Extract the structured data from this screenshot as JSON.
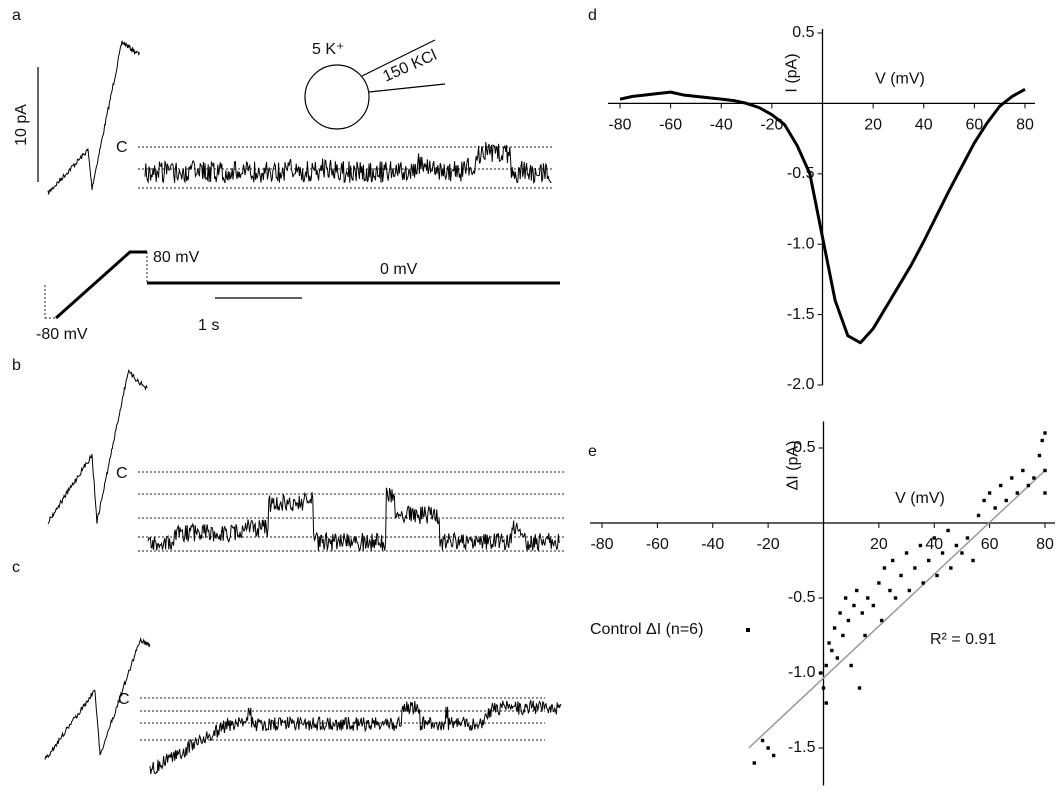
{
  "panel_labels": [
    "a",
    "b",
    "c",
    "d",
    "e"
  ],
  "panel_a": {
    "scale_current": "10 pA",
    "closed_label": "C",
    "bath": "5 K⁺",
    "pipette": "150 KCl",
    "step_high": "80 mV",
    "hold": "0 mV",
    "step_low": "-80 mV",
    "scale_time": "1 s"
  },
  "panel_b": {
    "closed_label": "C"
  },
  "panel_c": {
    "closed_label": "C"
  },
  "chart_data": [
    {
      "type": "line",
      "x_label": "V (mV)",
      "y_label": "I (pA)",
      "series": [
        {
          "color": "#000000",
          "x": [
            -80,
            -75,
            -70,
            -65,
            -60,
            -55,
            -50,
            -45,
            -40,
            -35,
            -30,
            -25,
            -20,
            -15,
            -10,
            -5,
            0,
            5,
            10,
            15,
            20,
            25,
            30,
            35,
            40,
            45,
            50,
            55,
            60,
            65,
            70,
            75,
            80
          ],
          "values": [
            0.03,
            0.05,
            0.06,
            0.07,
            0.08,
            0.06,
            0.05,
            0.04,
            0.03,
            0.02,
            0.0,
            -0.03,
            -0.08,
            -0.15,
            -0.3,
            -0.5,
            -0.95,
            -1.4,
            -1.65,
            -1.7,
            -1.6,
            -1.45,
            -1.3,
            -1.15,
            -0.98,
            -0.8,
            -0.62,
            -0.45,
            -0.28,
            -0.14,
            -0.02,
            0.05,
            0.1
          ]
        }
      ],
      "xlim": [
        -80,
        80
      ],
      "xticks": [
        -80,
        -60,
        -40,
        -20,
        20,
        40,
        60,
        80
      ],
      "ylim": [
        -2.0,
        0.5
      ],
      "yticks": [
        0.5,
        -0.5,
        {
          "value": -1.0,
          "label": "-1.0"
        },
        -1.5,
        {
          "value": -2.0,
          "label": "-2.0"
        }
      ]
    },
    {
      "type": "scatter",
      "x_label": "V (mV)",
      "y_label": "ΔI (pA)",
      "annotation": "R² = 0.91",
      "series": [
        {
          "name": "Control ΔI (n=6)",
          "color": "#000000",
          "x": [
            -25,
            -22,
            -20,
            -18,
            -1,
            0,
            1,
            1,
            2,
            3,
            4,
            5,
            6,
            7,
            8,
            9,
            10,
            11,
            12,
            13,
            14,
            15,
            16,
            18,
            20,
            21,
            22,
            24,
            25,
            26,
            28,
            30,
            31,
            33,
            35,
            36,
            38,
            40,
            41,
            43,
            45,
            46,
            48,
            50,
            52,
            54,
            56,
            58,
            60,
            62,
            64,
            66,
            68,
            70,
            72,
            74,
            76,
            78,
            79,
            80,
            80,
            80
          ],
          "values": [
            -1.6,
            -1.45,
            -1.5,
            -1.55,
            -1.0,
            -1.1,
            -0.95,
            -1.2,
            -0.8,
            -0.85,
            -0.7,
            -0.9,
            -0.6,
            -0.75,
            -0.5,
            -0.65,
            -0.95,
            -0.55,
            -0.45,
            -1.1,
            -0.6,
            -0.75,
            -0.5,
            -0.55,
            -0.4,
            -0.65,
            -0.3,
            -0.45,
            -0.25,
            -0.5,
            -0.35,
            -0.2,
            -0.45,
            -0.3,
            -0.15,
            -0.4,
            -0.25,
            -0.1,
            -0.35,
            -0.2,
            -0.05,
            -0.3,
            -0.15,
            -0.2,
            -0.1,
            -0.25,
            0.05,
            0.15,
            0.2,
            0.1,
            0.25,
            0.15,
            0.3,
            0.2,
            0.35,
            0.25,
            0.3,
            0.45,
            0.55,
            0.6,
            0.2,
            0.35
          ]
        }
      ],
      "trend_line": {
        "x": [
          -27,
          80
        ],
        "y": [
          -1.5,
          0.35
        ],
        "color": "#999999"
      },
      "xlim": [
        -80,
        80
      ],
      "xticks": [
        -80,
        -60,
        -40,
        -20,
        20,
        40,
        60,
        80
      ],
      "ylim": [
        -1.75,
        0.65
      ],
      "yticks": [
        0.5,
        -0.5,
        {
          "value": -1.0,
          "label": "-1.0"
        },
        -1.5
      ]
    }
  ]
}
